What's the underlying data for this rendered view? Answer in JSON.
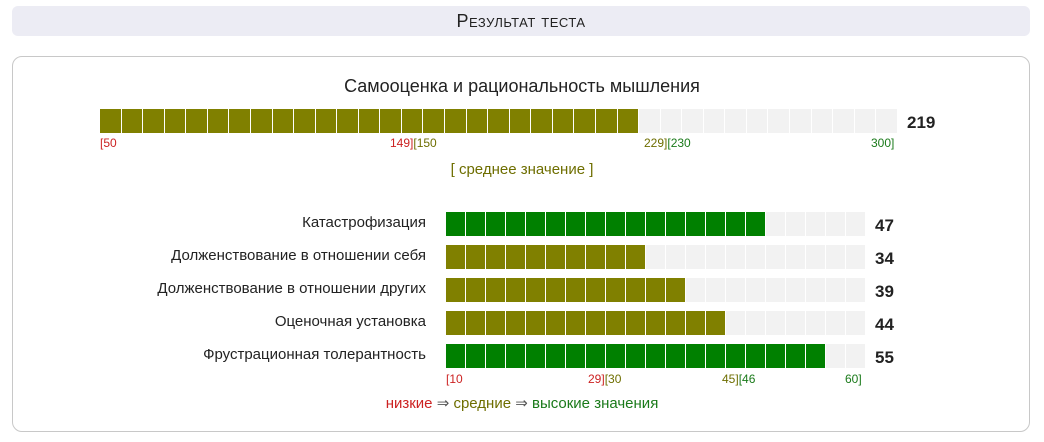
{
  "header": {
    "title": "Результат теста"
  },
  "main_scale": {
    "title": "Самооценка и рациональность мышления",
    "value": 219,
    "min": 50,
    "max": 300,
    "segments": 37,
    "fill_color": "#808000",
    "ticks": {
      "low_start": "[50",
      "low_mid": "149][150",
      "mid_high": "229][230",
      "high_end": "300]"
    },
    "level_label": "[ среднее значение ]"
  },
  "subscales": {
    "min": 10,
    "max": 60,
    "segments": 21,
    "items": [
      {
        "label": "Катастрофизация",
        "value": 47,
        "fill_color": "#008000"
      },
      {
        "label": "Долженствование в отношении себя",
        "value": 34,
        "fill_color": "#808000"
      },
      {
        "label": "Долженствование в отношении других",
        "value": 39,
        "fill_color": "#808000"
      },
      {
        "label": "Оценочная установка",
        "value": 44,
        "fill_color": "#808000"
      },
      {
        "label": "Фрустрационная толерантность",
        "value": 55,
        "fill_color": "#008000"
      }
    ],
    "ticks": {
      "low_start": "[10",
      "low_mid": "29][30",
      "mid_high": "45][46",
      "high_end": "60]"
    }
  },
  "legend": {
    "low": "низкие",
    "arrow1": "⇒",
    "mid": "средние",
    "arrow2": "⇒",
    "high": "высокие значения"
  },
  "colors": {
    "low": "#cc2222",
    "mid": "#6e6e00",
    "high": "#1a7a1a",
    "empty": "#f2f2f2"
  }
}
